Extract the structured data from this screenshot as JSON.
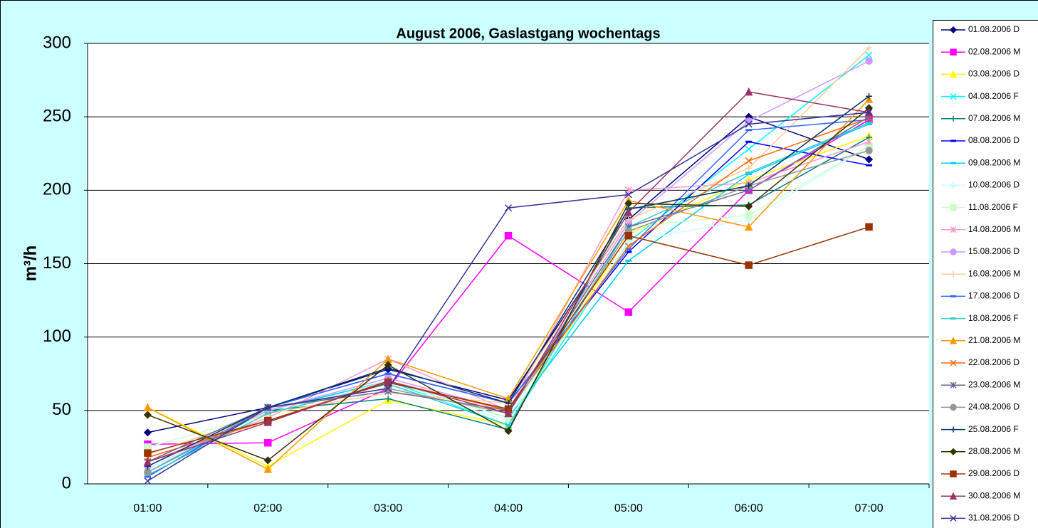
{
  "chart_data": {
    "type": "line",
    "title": "August 2006, Gaslastgang wochentags",
    "y_label": "m³/h",
    "categories": [
      "01:00",
      "02:00",
      "03:00",
      "04:00",
      "05:00",
      "06:00",
      "07:00"
    ],
    "ylim": [
      0,
      300
    ],
    "yticks": [
      0,
      50,
      100,
      150,
      200,
      250,
      300
    ],
    "grid": true,
    "legend": "right",
    "series": [
      {
        "name": "01.08.2006 D",
        "color": "#000080",
        "marker": "diamond",
        "values": [
          35,
          52,
          78,
          57,
          180,
          250,
          221
        ]
      },
      {
        "name": "02.08.2006 M",
        "color": "#ff00ff",
        "marker": "square",
        "values": [
          27,
          28,
          65,
          169,
          117,
          200,
          248
        ]
      },
      {
        "name": "03.08.2006 D",
        "color": "#ffff00",
        "marker": "triangle",
        "values": [
          52,
          12,
          57,
          40,
          170,
          207,
          237
        ]
      },
      {
        "name": "04.08.2006 F",
        "color": "#00ffff",
        "marker": "x",
        "values": [
          8,
          50,
          70,
          40,
          165,
          228,
          292
        ]
      },
      {
        "name": "07.08.2006 M",
        "color": "#008080",
        "marker": "plus",
        "values": [
          10,
          50,
          58,
          37,
          188,
          190,
          236
        ]
      },
      {
        "name": "08.08.2006 D",
        "color": "#0000ff",
        "marker": "dash",
        "values": [
          5,
          52,
          75,
          55,
          158,
          233,
          217
        ]
      },
      {
        "name": "09.08.2006 M",
        "color": "#00ccff",
        "marker": "dash",
        "values": [
          8,
          50,
          70,
          45,
          152,
          211,
          245
        ]
      },
      {
        "name": "10.08.2006 D",
        "color": "#ccffff",
        "marker": "diamond",
        "values": [
          10,
          50,
          68,
          43,
          165,
          180,
          230
        ]
      },
      {
        "name": "11.08.2006 F",
        "color": "#ccffcc",
        "marker": "square",
        "values": [
          25,
          48,
          70,
          45,
          175,
          183,
          230
        ]
      },
      {
        "name": "14.08.2006 M",
        "color": "#ff99cc",
        "marker": "star",
        "values": [
          15,
          45,
          85,
          50,
          200,
          205,
          233
        ]
      },
      {
        "name": "15.08.2006 D",
        "color": "#cc99ff",
        "marker": "circle",
        "values": [
          12,
          50,
          72,
          50,
          178,
          247,
          288
        ]
      },
      {
        "name": "16.08.2006 M",
        "color": "#ffcc99",
        "marker": "plus",
        "values": [
          20,
          48,
          62,
          55,
          180,
          215,
          297
        ]
      },
      {
        "name": "17.08.2006 D",
        "color": "#3366ff",
        "marker": "dash",
        "values": [
          5,
          52,
          75,
          55,
          160,
          241,
          248
        ]
      },
      {
        "name": "18.08.2006 F",
        "color": "#33cccc",
        "marker": "dash",
        "values": [
          6,
          48,
          68,
          40,
          175,
          212,
          246
        ]
      },
      {
        "name": "21.08.2006 M",
        "color": "#ff9900",
        "marker": "triangle",
        "values": [
          52,
          10,
          85,
          58,
          193,
          175,
          262
        ]
      },
      {
        "name": "22.08.2006 D",
        "color": "#ff6600",
        "marker": "x",
        "values": [
          18,
          43,
          70,
          50,
          162,
          220,
          249
        ]
      },
      {
        "name": "23.08.2006 M",
        "color": "#666699",
        "marker": "star",
        "values": [
          15,
          52,
          63,
          50,
          175,
          200,
          250
        ]
      },
      {
        "name": "24.08.2006 D",
        "color": "#969696",
        "marker": "circle",
        "values": [
          8,
          52,
          65,
          48,
          172,
          203,
          227
        ]
      },
      {
        "name": "25.08.2006 F",
        "color": "#003366",
        "marker": "plus",
        "values": [
          12,
          52,
          79,
          55,
          187,
          203,
          264
        ]
      },
      {
        "name": "28.08.2006 M",
        "color": "#333300",
        "marker": "diamond",
        "values": [
          47,
          16,
          81,
          36,
          191,
          189,
          256
        ]
      },
      {
        "name": "29.08.2006 D",
        "color": "#993300",
        "marker": "square",
        "values": [
          21,
          43,
          69,
          51,
          169,
          149,
          175
        ]
      },
      {
        "name": "30.08.2006 M",
        "color": "#993366",
        "marker": "triangle",
        "values": [
          15,
          42,
          70,
          48,
          185,
          267,
          253
        ]
      },
      {
        "name": "31.08.2006 D",
        "color": "#333399",
        "marker": "x",
        "values": [
          2,
          52,
          65,
          188,
          197,
          245,
          253
        ]
      }
    ]
  }
}
